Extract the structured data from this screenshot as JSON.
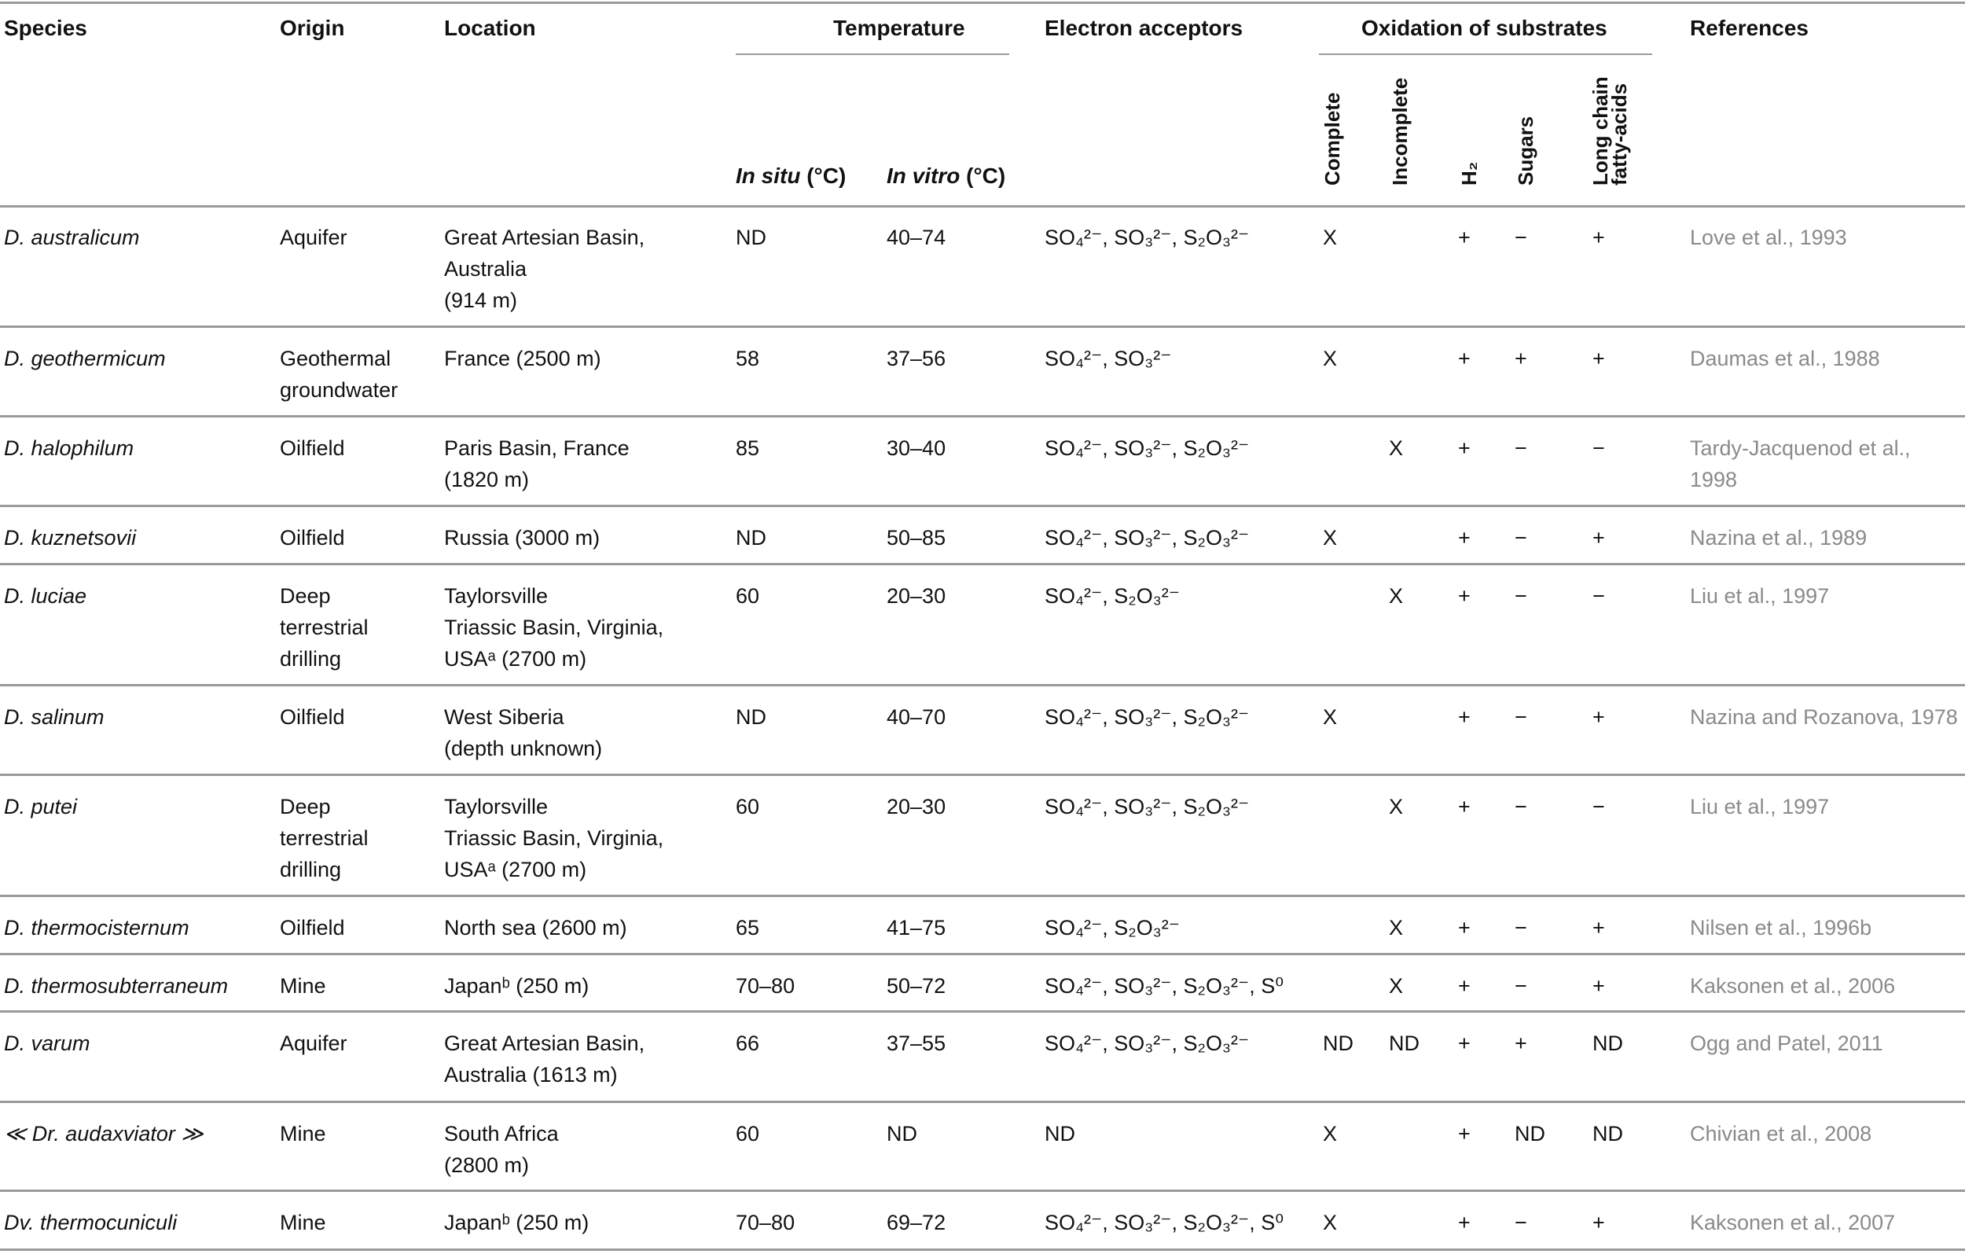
{
  "headers": {
    "species": "Species",
    "origin": "Origin",
    "location": "Location",
    "temperature": "Temperature",
    "in_situ": "In situ",
    "in_vitro": "In vitro",
    "unit": "(°C)",
    "electron_acceptors": "Electron acceptors",
    "oxidation": "Oxidation of substrates",
    "complete": "Complete",
    "incomplete": "Incomplete",
    "h2": "H₂",
    "sugars": "Sugars",
    "lcfa_1": "Long chain",
    "lcfa_2": "fatty-acids",
    "references": "References"
  },
  "rows": [
    {
      "species": "D. australicum",
      "origin": "Aquifer",
      "location": "Great Artesian Basin,\nAustralia\n(914 m)",
      "in_situ": "ND",
      "in_vitro": "40–74",
      "acceptors": "SO₄²⁻, SO₃²⁻, S₂O₃²⁻",
      "complete": "X",
      "incomplete": "",
      "h2": "+",
      "sugars": "−",
      "lcfa": "+",
      "ref": "Love et al., 1993"
    },
    {
      "species": "D. geothermicum",
      "origin": "Geothermal\ngroundwater",
      "location": "France (2500 m)",
      "in_situ": "58",
      "in_vitro": "37–56",
      "acceptors": "SO₄²⁻, SO₃²⁻",
      "complete": "X",
      "incomplete": "",
      "h2": "+",
      "sugars": "+",
      "lcfa": "+",
      "ref": "Daumas et al., 1988"
    },
    {
      "species": "D. halophilum",
      "origin": "Oilfield",
      "location": "Paris Basin, France\n(1820 m)",
      "in_situ": "85",
      "in_vitro": "30–40",
      "acceptors": "SO₄²⁻, SO₃²⁻, S₂O₃²⁻",
      "complete": "",
      "incomplete": "X",
      "h2": "+",
      "sugars": "−",
      "lcfa": "−",
      "ref": "Tardy-Jacquenod et al.,\n1998"
    },
    {
      "species": "D. kuznetsovii",
      "origin": "Oilfield",
      "location": "Russia (3000 m)",
      "in_situ": "ND",
      "in_vitro": "50–85",
      "acceptors": "SO₄²⁻, SO₃²⁻, S₂O₃²⁻",
      "complete": "X",
      "incomplete": "",
      "h2": "+",
      "sugars": "−",
      "lcfa": "+",
      "ref": "Nazina et al., 1989"
    },
    {
      "species": "D. luciae",
      "origin": "Deep\nterrestrial\ndrilling",
      "location": "Taylorsville\nTriassic Basin, Virginia,\nUSAᵃ (2700 m)",
      "in_situ": "60",
      "in_vitro": "20–30",
      "acceptors": "SO₄²⁻, S₂O₃²⁻",
      "complete": "",
      "incomplete": "X",
      "h2": "+",
      "sugars": "−",
      "lcfa": "−",
      "ref": "Liu et al., 1997"
    },
    {
      "species": "D. salinum",
      "origin": "Oilfield",
      "location": "West Siberia\n(depth unknown)",
      "in_situ": "ND",
      "in_vitro": "40–70",
      "acceptors": "SO₄²⁻, SO₃²⁻, S₂O₃²⁻",
      "complete": "X",
      "incomplete": "",
      "h2": "+",
      "sugars": "−",
      "lcfa": "+",
      "ref": "Nazina and Rozanova, 1978"
    },
    {
      "species": "D. putei",
      "origin": "Deep\nterrestrial\ndrilling",
      "location": "Taylorsville\nTriassic Basin, Virginia,\nUSAᵃ (2700 m)",
      "in_situ": "60",
      "in_vitro": "20–30",
      "acceptors": "SO₄²⁻, SO₃²⁻, S₂O₃²⁻",
      "complete": "",
      "incomplete": "X",
      "h2": "+",
      "sugars": "−",
      "lcfa": "−",
      "ref": "Liu et al., 1997"
    },
    {
      "species": "D. thermocisternum",
      "origin": "Oilfield",
      "location": "North sea (2600 m)",
      "in_situ": "65",
      "in_vitro": "41–75",
      "acceptors": "SO₄²⁻, S₂O₃²⁻",
      "complete": "",
      "incomplete": "X",
      "h2": "+",
      "sugars": "−",
      "lcfa": "+",
      "ref": "Nilsen et al., 1996b"
    },
    {
      "species": "D. thermosubterraneum",
      "origin": "Mine",
      "location": "Japanᵇ (250 m)",
      "in_situ": "70–80",
      "in_vitro": "50–72",
      "acceptors": "SO₄²⁻, SO₃²⁻, S₂O₃²⁻, S⁰",
      "complete": "",
      "incomplete": "X",
      "h2": "+",
      "sugars": "−",
      "lcfa": "+",
      "ref": "Kaksonen et al., 2006"
    },
    {
      "species": "D. varum",
      "origin": "Aquifer",
      "location": "Great Artesian Basin,\nAustralia (1613 m)",
      "in_situ": "66",
      "in_vitro": "37–55",
      "acceptors": "SO₄²⁻, SO₃²⁻, S₂O₃²⁻",
      "complete": "ND",
      "incomplete": "ND",
      "h2": "+",
      "sugars": "+",
      "lcfa": "ND",
      "ref": "Ogg and Patel, 2011"
    },
    {
      "species": "≪ Dr. audaxviator ≫",
      "origin": "Mine",
      "location": "South Africa\n(2800 m)",
      "in_situ": "60",
      "in_vitro": "ND",
      "acceptors": "ND",
      "complete": "X",
      "incomplete": "",
      "h2": "+",
      "sugars": "ND",
      "lcfa": "ND",
      "ref": "Chivian et al., 2008"
    },
    {
      "species": "Dv. thermocuniculi",
      "origin": "Mine",
      "location": "Japanᵇ (250 m)",
      "in_situ": "70–80",
      "in_vitro": "69–72",
      "acceptors": "SO₄²⁻, SO₃²⁻, S₂O₃²⁻, S⁰",
      "complete": "X",
      "incomplete": "",
      "h2": "+",
      "sugars": "−",
      "lcfa": "+",
      "ref": "Kaksonen et al., 2007"
    }
  ],
  "colors": {
    "rule": "#9a9a9a",
    "reference_text": "#8a8a8a",
    "text": "#111111"
  }
}
